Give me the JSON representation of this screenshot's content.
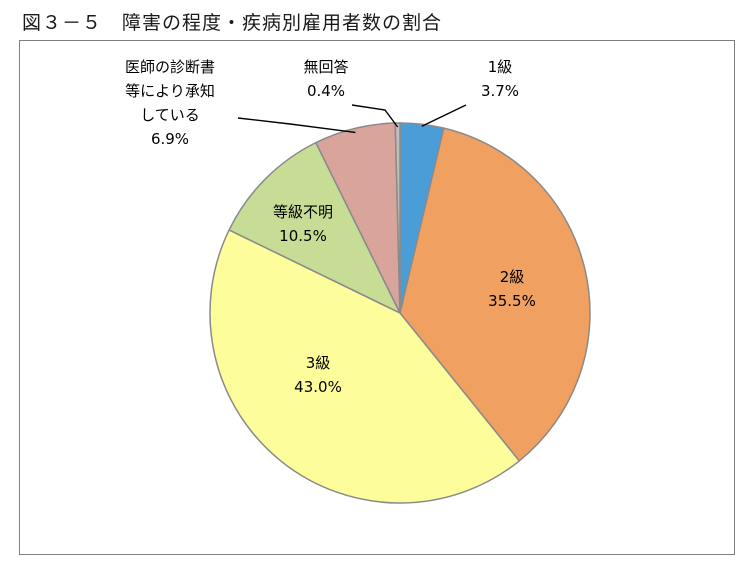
{
  "title": "図３－５　障害の程度・疾病別雇用者数の割合",
  "chart_data": {
    "type": "pie",
    "title": "図３－５　障害の程度・疾病別雇用者数の割合",
    "slices": [
      {
        "label": "1級",
        "value": 3.7,
        "text": "3.7%",
        "color": "#4a9dd6"
      },
      {
        "label": "2級",
        "value": 35.5,
        "text": "35.5%",
        "color": "#f0a060"
      },
      {
        "label": "3級",
        "value": 43.0,
        "text": "43.0%",
        "color": "#fdfd9c"
      },
      {
        "label": "等級不明",
        "value": 10.5,
        "text": "10.5%",
        "color": "#c7dc95"
      },
      {
        "label": "医師の診断書等により承知している",
        "value": 6.9,
        "text": "6.9%",
        "color": "#d8a49b"
      },
      {
        "label": "無回答",
        "value": 0.4,
        "text": "0.4%",
        "color": "#bdbdbd"
      }
    ],
    "legend": "none",
    "start_angle": "12 o'clock",
    "direction": "clockwise"
  }
}
